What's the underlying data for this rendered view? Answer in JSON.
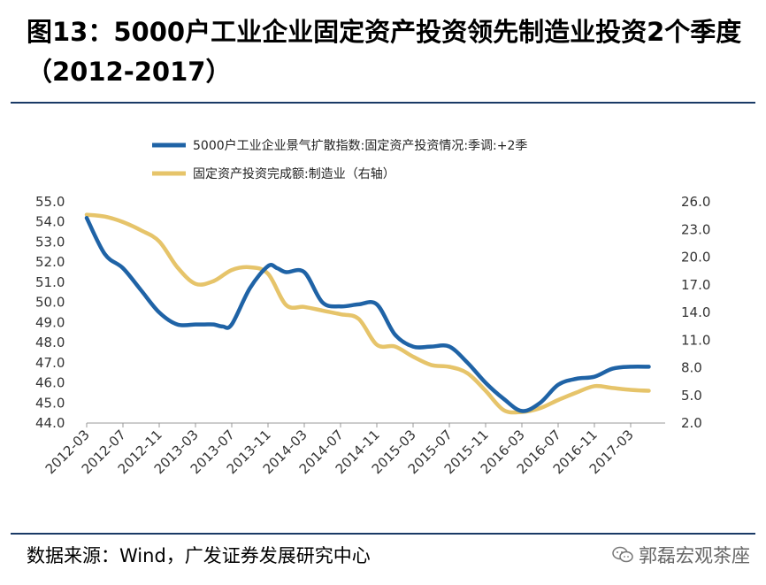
{
  "header": {
    "title": "图13：5000户工业企业固定资产投资领先制造业投资2个季度（2012-2017）"
  },
  "footer": {
    "source": "数据来源：Wind，广发证券发展研究中心",
    "watermark": "郭磊宏观茶座",
    "watermark_icon": "wechat-icon"
  },
  "chart_data": {
    "type": "line",
    "legend_placement": "top",
    "grid": false,
    "categories": [
      "2012-03",
      "2012-07",
      "2012-11",
      "2013-03",
      "2013-07",
      "2013-11",
      "2014-03",
      "2014-07",
      "2014-11",
      "2015-03",
      "2015-07",
      "2015-11",
      "2016-03",
      "2016-07",
      "2016-11",
      "2017-03"
    ],
    "y_left": {
      "min": 44.0,
      "max": 55.0,
      "ticks": [
        "44.0",
        "45.0",
        "46.0",
        "47.0",
        "48.0",
        "49.0",
        "50.0",
        "51.0",
        "52.0",
        "53.0",
        "54.0",
        "55.0"
      ]
    },
    "y_right": {
      "min": 2.0,
      "max": 26.0,
      "ticks": [
        "2.0",
        "5.0",
        "8.0",
        "11.0",
        "14.0",
        "17.0",
        "20.0",
        "23.0",
        "26.0"
      ]
    },
    "series": [
      {
        "name": "5000户工业企业景气扩散指数:固定资产投资情况:季调:+2季",
        "color": "#1f63a6",
        "axis": "left",
        "x": [
          0,
          0.5,
          1,
          1.5,
          2,
          2.5,
          3,
          3.25,
          3.5,
          3.75,
          4,
          4.5,
          5,
          5.25,
          5.5,
          6,
          6.5,
          7,
          7.5,
          8,
          8.5,
          9,
          9.5,
          10,
          10.5,
          11,
          11.5,
          12,
          12.5,
          13,
          13.5,
          14,
          14.5,
          15,
          15.5
        ],
        "values": [
          54.2,
          52.4,
          51.7,
          50.6,
          49.5,
          48.9,
          48.9,
          48.9,
          48.9,
          48.8,
          48.9,
          50.7,
          51.8,
          51.7,
          51.5,
          51.5,
          50.0,
          49.8,
          49.9,
          49.9,
          48.4,
          47.8,
          47.8,
          47.8,
          47.0,
          46.0,
          45.2,
          44.6,
          45.0,
          45.9,
          46.2,
          46.3,
          46.7,
          46.8,
          46.8
        ]
      },
      {
        "name": "固定资产投资完成额:制造业（右轴）",
        "color": "#e6c46a",
        "axis": "right",
        "x": [
          0,
          0.5,
          1,
          1.5,
          2,
          2.5,
          3,
          3.5,
          4,
          4.5,
          5,
          5.5,
          6,
          6.5,
          7,
          7.5,
          8,
          8.5,
          9,
          9.5,
          10,
          10.5,
          11,
          11.5,
          12,
          12.5,
          13,
          13.5,
          14,
          14.5,
          15,
          15.5
        ],
        "values": [
          24.6,
          24.4,
          23.8,
          22.9,
          21.7,
          18.9,
          17.1,
          17.4,
          18.6,
          18.9,
          18.2,
          14.8,
          14.6,
          14.2,
          13.8,
          13.3,
          10.5,
          10.3,
          9.2,
          8.3,
          8.1,
          7.4,
          5.5,
          3.4,
          3.2,
          3.6,
          4.5,
          5.3,
          6.0,
          5.8,
          5.6,
          5.5
        ]
      }
    ]
  }
}
